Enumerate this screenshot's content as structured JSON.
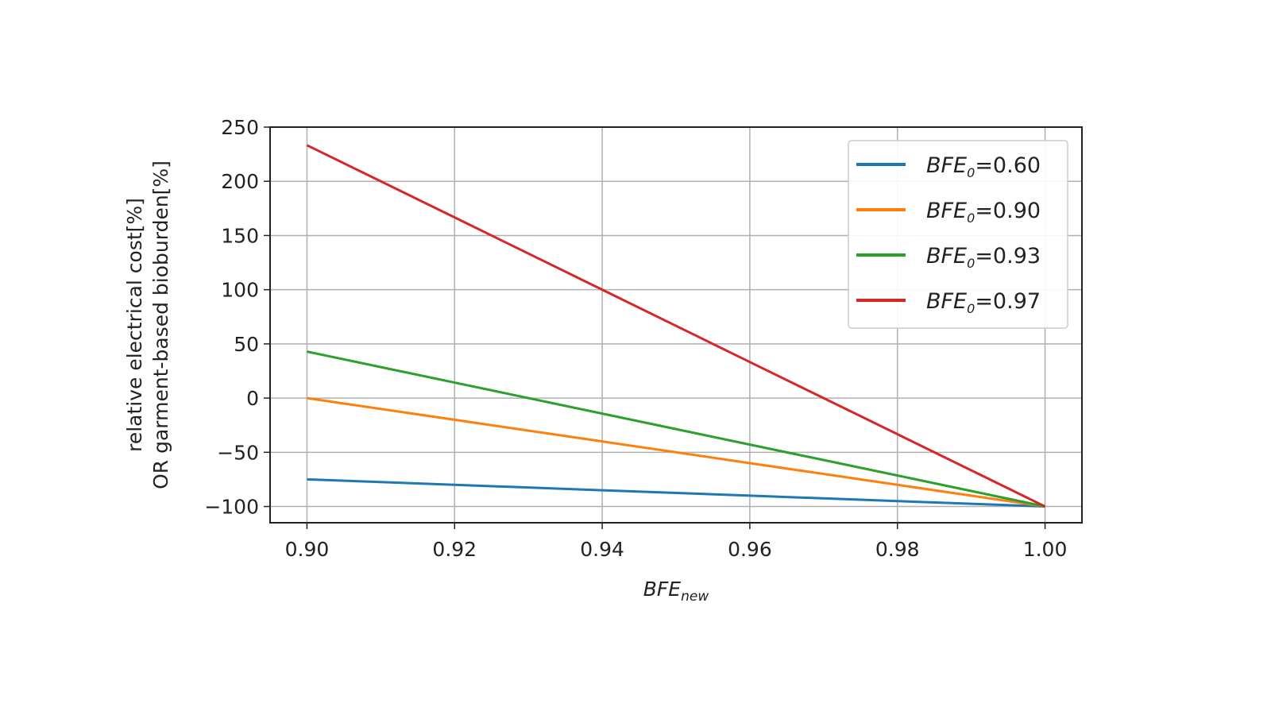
{
  "chart_data": {
    "type": "line",
    "x": [
      0.9,
      0.92,
      0.94,
      0.96,
      0.98,
      1.0
    ],
    "series": [
      {
        "name": "BFE0=0.60",
        "legend": {
          "base": "BFE",
          "sub": "0",
          "eq": "=0.60"
        },
        "color": "#1f77b4",
        "values": [
          -75,
          -80,
          -85,
          -90,
          -95,
          -100
        ]
      },
      {
        "name": "BFE0=0.90",
        "legend": {
          "base": "BFE",
          "sub": "0",
          "eq": "=0.90"
        },
        "color": "#ff7f0e",
        "values": [
          0,
          -20,
          -40,
          -60,
          -80,
          -100
        ]
      },
      {
        "name": "BFE0=0.93",
        "legend": {
          "base": "BFE",
          "sub": "0",
          "eq": "=0.93"
        },
        "color": "#2ca02c",
        "values": [
          42.9,
          14.3,
          -14.3,
          -42.9,
          -71.4,
          -100
        ]
      },
      {
        "name": "BFE0=0.97",
        "legend": {
          "base": "BFE",
          "sub": "0",
          "eq": "=0.97"
        },
        "color": "#d62728",
        "values": [
          233.3,
          166.7,
          100,
          33.3,
          -33.3,
          -100
        ]
      }
    ],
    "xlabel": {
      "base": "BFE",
      "sub": "new"
    },
    "ylabel": [
      "relative electrical cost[%]",
      "OR garment-based bioburden[%]"
    ],
    "xticks": [
      "0.90",
      "0.92",
      "0.94",
      "0.96",
      "0.98",
      "1.00"
    ],
    "xtick_values": [
      0.9,
      0.92,
      0.94,
      0.96,
      0.98,
      1.0
    ],
    "yticks": [
      "250",
      "200",
      "150",
      "100",
      "50",
      "0",
      "−50",
      "−100"
    ],
    "ytick_values": [
      250,
      200,
      150,
      100,
      50,
      0,
      -50,
      -100
    ],
    "xlim": [
      0.895,
      1.005
    ],
    "ylim": [
      -115,
      250
    ],
    "grid": true,
    "legend_position": "top-right"
  }
}
